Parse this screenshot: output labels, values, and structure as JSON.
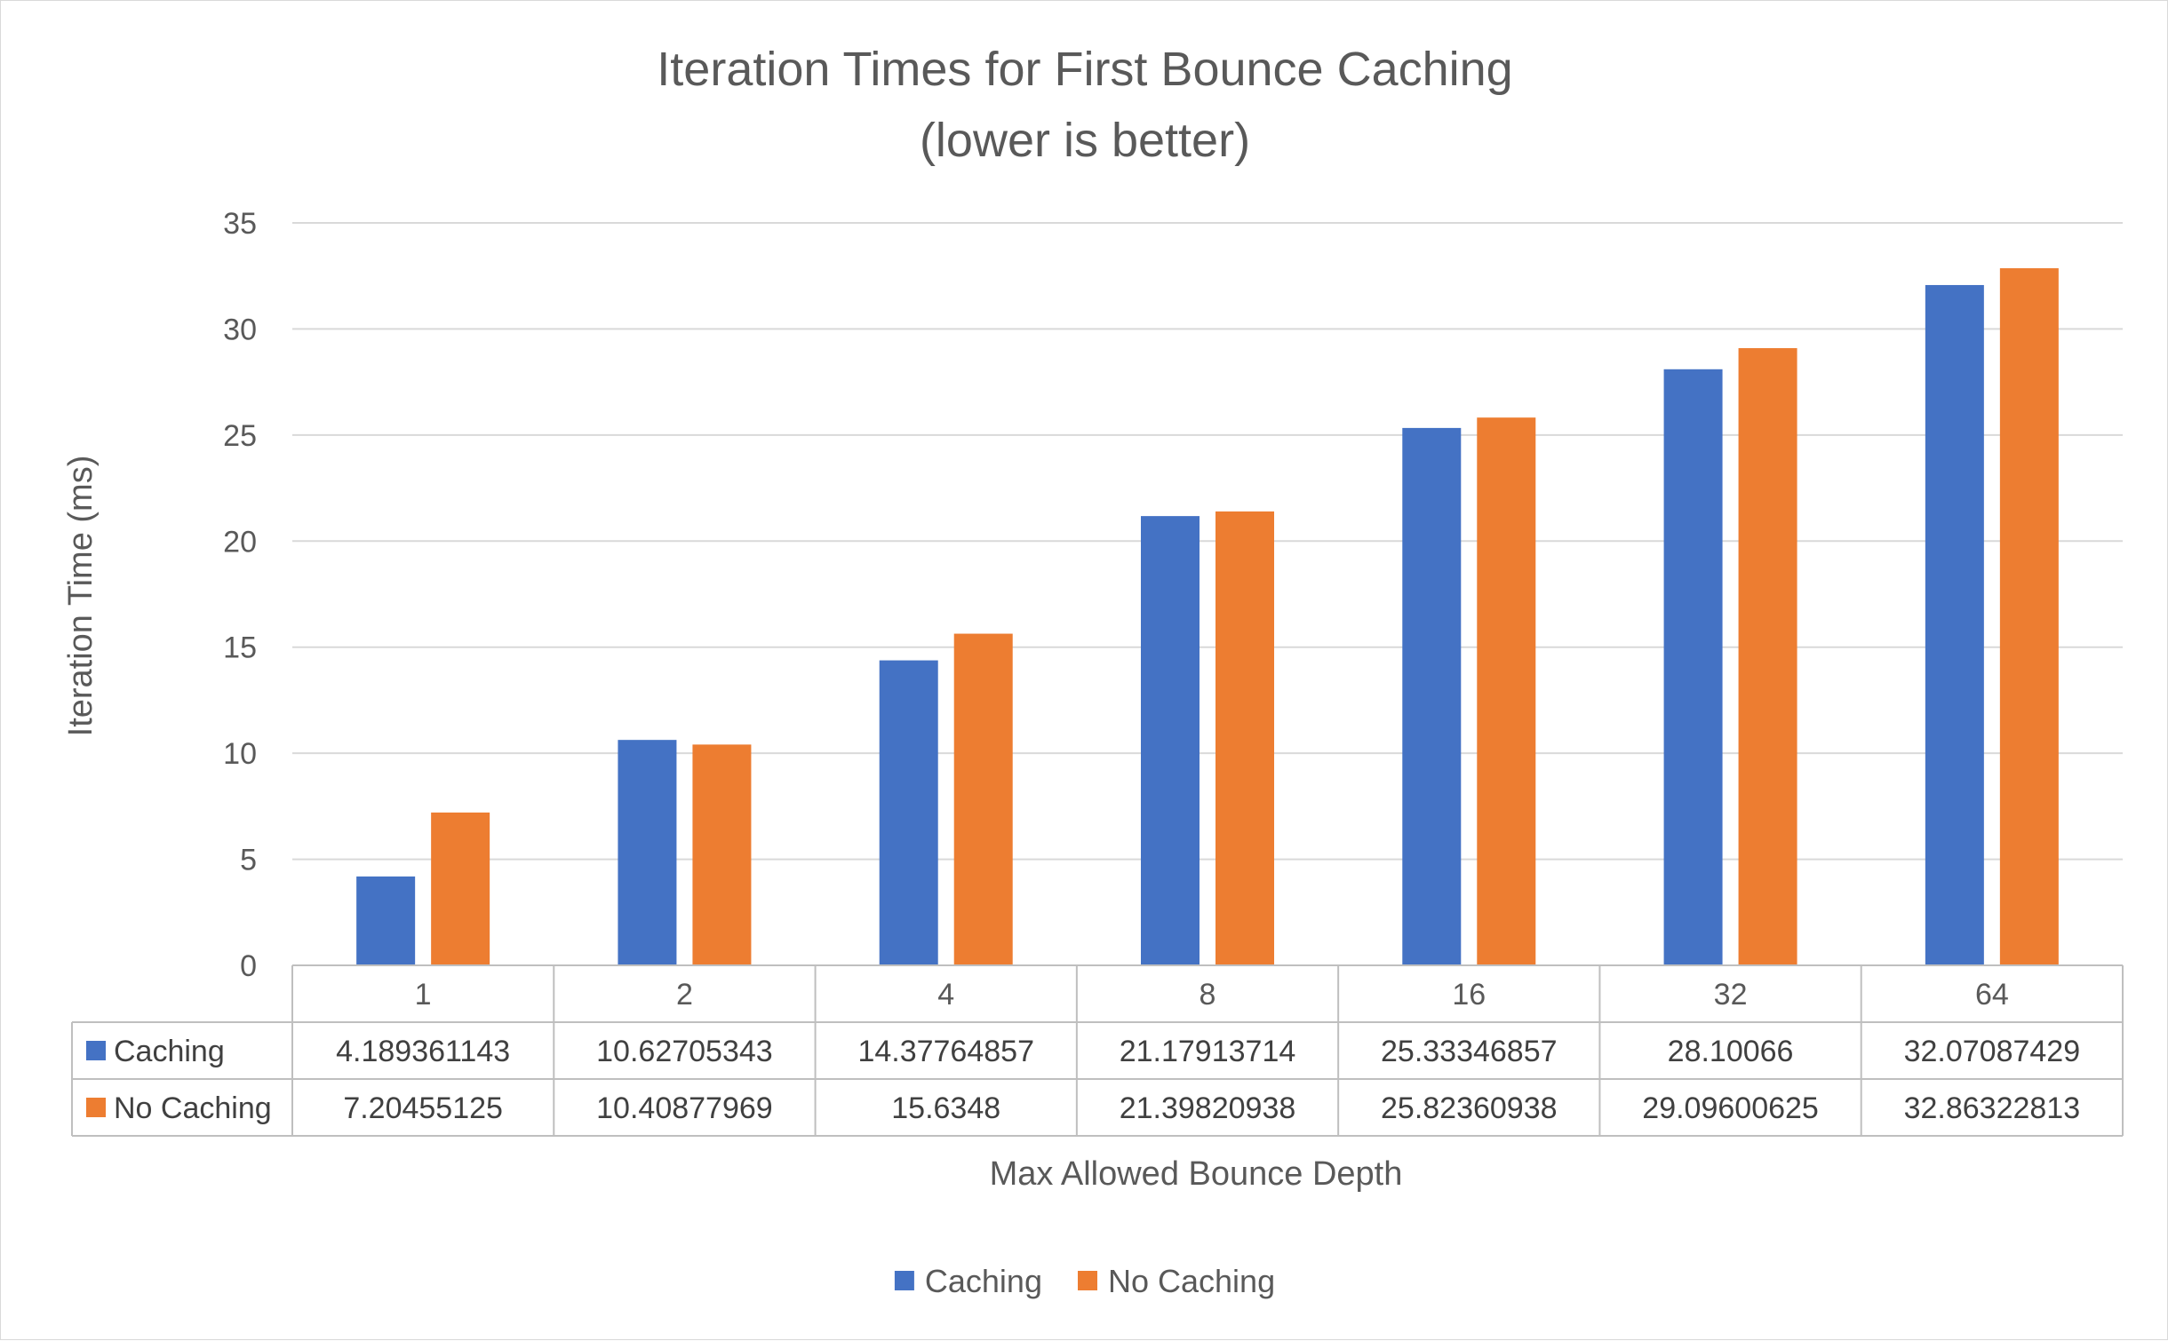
{
  "chart_data": {
    "type": "bar",
    "title": "Iteration Times for First Bounce Caching",
    "subtitle": "(lower is better)",
    "xlabel": "Max Allowed Bounce Depth",
    "ylabel": "Iteration Time (ms)",
    "ylim": [
      0,
      35
    ],
    "y_ticks": [
      0,
      5,
      10,
      15,
      20,
      25,
      30,
      35
    ],
    "grid": true,
    "legend_position": "bottom",
    "data_table": true,
    "categories": [
      "1",
      "2",
      "4",
      "8",
      "16",
      "32",
      "64"
    ],
    "series": [
      {
        "name": "Caching",
        "color": "#4472C4",
        "values": [
          4.189361143,
          10.62705343,
          14.37764857,
          21.17913714,
          25.33346857,
          28.10066,
          32.07087429
        ],
        "table_labels": [
          "4.189361143",
          "10.62705343",
          "14.37764857",
          "21.17913714",
          "25.33346857",
          "28.10066",
          "32.07087429"
        ]
      },
      {
        "name": "No Caching",
        "color": "#ED7D31",
        "values": [
          7.20455125,
          10.40877969,
          15.6348,
          21.39820938,
          25.82360938,
          29.09600625,
          32.86322813
        ],
        "table_labels": [
          "7.20455125",
          "10.40877969",
          "15.6348",
          "21.39820938",
          "25.82360938",
          "29.09600625",
          "32.86322813"
        ]
      }
    ]
  },
  "colors": {
    "text": "#595959",
    "table_text": "#404040",
    "gridline": "#d9d9d9",
    "table_border": "#bfbfbf",
    "frame_border": "#d9d9d9"
  }
}
